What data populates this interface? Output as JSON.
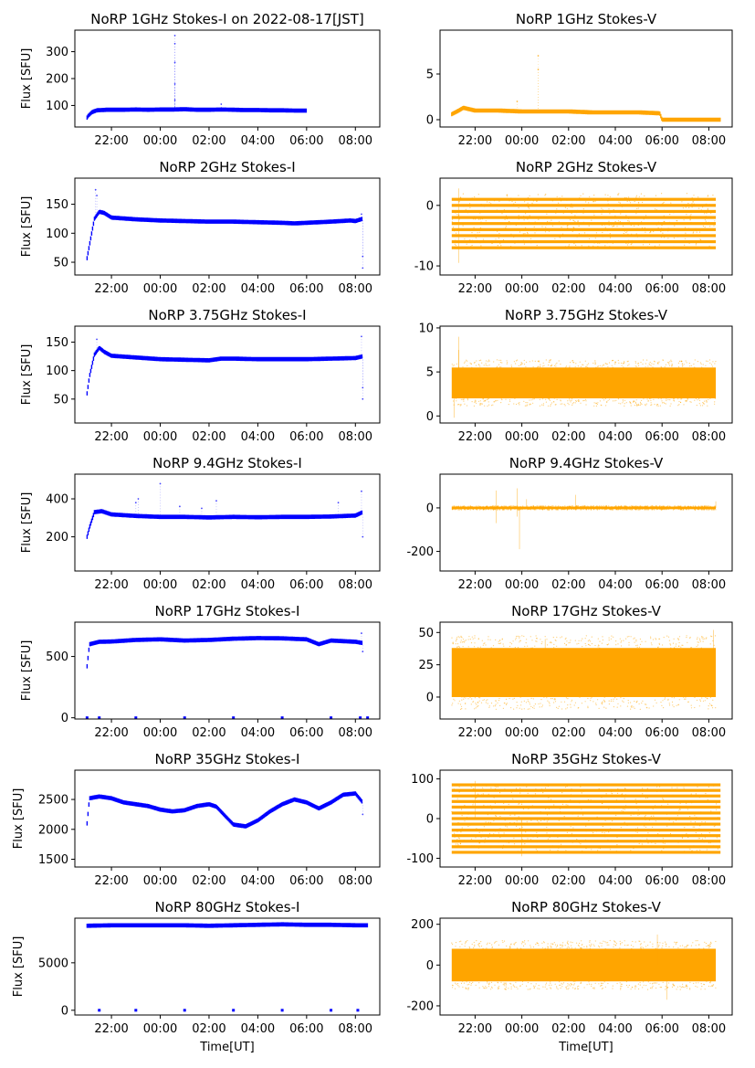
{
  "figure": {
    "xlabel": "Time[UT]",
    "colors": {
      "stokes_i": "#0000ff",
      "stokes_v": "#ffa500"
    }
  },
  "x_tick_labels": [
    "22:00",
    "00:00",
    "02:00",
    "04:00",
    "06:00",
    "08:00"
  ],
  "chart_data": [
    {
      "type": "scatter",
      "title": "NoRP 1GHz Stokes-I on 2022-08-17[JST]",
      "ylabel": "Flux [SFU]",
      "xlabel": "",
      "xlim": [
        20.5,
        33.0
      ],
      "ylim": [
        20,
        380
      ],
      "yticks": [
        100,
        200,
        300
      ],
      "data_range": [
        21.0,
        30.0
      ],
      "series": [
        {
          "name": "Stokes-I",
          "color": "#0000ff",
          "points": [
            [
              21.0,
              55
            ],
            [
              21.05,
              62
            ],
            [
              21.2,
              75
            ],
            [
              21.4,
              82
            ],
            [
              21.8,
              84
            ],
            [
              22.5,
              84
            ],
            [
              23.0,
              85
            ],
            [
              23.5,
              84
            ],
            [
              24.0,
              85
            ],
            [
              24.5,
              85
            ],
            [
              25.0,
              86
            ],
            [
              25.5,
              84
            ],
            [
              26.0,
              84
            ],
            [
              26.5,
              85
            ],
            [
              27.0,
              84
            ],
            [
              27.5,
              83
            ],
            [
              28.0,
              83
            ],
            [
              28.5,
              82
            ],
            [
              29.0,
              82
            ],
            [
              29.5,
              81
            ],
            [
              30.0,
              81
            ]
          ]
        }
      ],
      "spikes": [
        [
          24.6,
          360
        ],
        [
          24.6,
          330
        ],
        [
          24.6,
          260
        ],
        [
          24.6,
          180
        ],
        [
          24.6,
          120
        ],
        [
          26.5,
          105
        ]
      ]
    },
    {
      "type": "scatter",
      "title": "NoRP 1GHz Stokes-V",
      "ylabel": "",
      "xlabel": "",
      "xlim": [
        20.5,
        33.0
      ],
      "ylim": [
        -0.8,
        9.8
      ],
      "yticks": [
        0,
        5
      ],
      "data_range": [
        21.0,
        32.5
      ],
      "series": [
        {
          "name": "Stokes-V",
          "color": "#ffa500",
          "points": [
            [
              21.0,
              0.6
            ],
            [
              21.3,
              1.0
            ],
            [
              21.5,
              1.3
            ],
            [
              22.0,
              1.0
            ],
            [
              23.0,
              1.0
            ],
            [
              24.0,
              0.9
            ],
            [
              25.0,
              0.9
            ],
            [
              26.0,
              0.9
            ],
            [
              27.0,
              0.8
            ],
            [
              28.0,
              0.8
            ],
            [
              29.0,
              0.8
            ],
            [
              29.9,
              0.7
            ],
            [
              30.0,
              0.0
            ],
            [
              31.0,
              0.0
            ],
            [
              32.5,
              0.0
            ]
          ]
        }
      ],
      "spikes": [
        [
          24.7,
          7.0
        ],
        [
          24.7,
          5.5
        ],
        [
          23.8,
          2.0
        ]
      ]
    },
    {
      "type": "scatter",
      "title": "NoRP 2GHz Stokes-I",
      "ylabel": "Flux [SFU]",
      "xlabel": "",
      "xlim": [
        20.5,
        33.0
      ],
      "ylim": [
        28,
        195
      ],
      "yticks": [
        50,
        100,
        150
      ],
      "data_range": [
        21.0,
        32.3
      ],
      "series": [
        {
          "name": "Stokes-I",
          "color": "#0000ff",
          "points": [
            [
              21.0,
              57
            ],
            [
              21.1,
              80
            ],
            [
              21.3,
              125
            ],
            [
              21.5,
              137
            ],
            [
              21.7,
              135
            ],
            [
              22.0,
              127
            ],
            [
              23.0,
              124
            ],
            [
              24.0,
              122
            ],
            [
              25.0,
              121
            ],
            [
              26.0,
              120
            ],
            [
              27.0,
              120
            ],
            [
              28.0,
              119
            ],
            [
              29.0,
              118
            ],
            [
              29.5,
              117
            ],
            [
              30.0,
              118
            ],
            [
              31.0,
              120
            ],
            [
              31.8,
              122
            ],
            [
              32.0,
              121
            ],
            [
              32.3,
              125
            ]
          ]
        }
      ],
      "spikes": [
        [
          21.35,
          175
        ],
        [
          21.4,
          165
        ],
        [
          32.3,
          40
        ],
        [
          32.3,
          60
        ],
        [
          32.25,
          133
        ]
      ]
    },
    {
      "type": "band",
      "title": "NoRP 2GHz Stokes-V",
      "ylabel": "",
      "xlabel": "",
      "xlim": [
        20.5,
        33.0
      ],
      "ylim": [
        -11.5,
        4.5
      ],
      "yticks": [
        -10,
        0
      ],
      "data_range": [
        21.0,
        32.3
      ],
      "band": {
        "min": -7,
        "max": 2,
        "levels": [
          -7,
          -6,
          -5,
          -4,
          -3,
          -2,
          -1,
          0,
          1
        ]
      },
      "spikes": [
        [
          21.3,
          2.8
        ],
        [
          21.3,
          -9.5
        ]
      ]
    },
    {
      "type": "scatter",
      "title": "NoRP 3.75GHz Stokes-I",
      "ylabel": "Flux [SFU]",
      "xlabel": "",
      "xlim": [
        20.5,
        33.0
      ],
      "ylim": [
        8,
        178
      ],
      "yticks": [
        50,
        100,
        150
      ],
      "data_range": [
        21.0,
        32.3
      ],
      "series": [
        {
          "name": "Stokes-I",
          "color": "#0000ff",
          "points": [
            [
              21.0,
              60
            ],
            [
              21.1,
              90
            ],
            [
              21.3,
              128
            ],
            [
              21.5,
              140
            ],
            [
              21.7,
              133
            ],
            [
              22.0,
              126
            ],
            [
              23.0,
              123
            ],
            [
              24.0,
              120
            ],
            [
              25.0,
              119
            ],
            [
              26.0,
              118
            ],
            [
              26.5,
              121
            ],
            [
              27.0,
              121
            ],
            [
              28.0,
              120
            ],
            [
              29.0,
              120
            ],
            [
              30.0,
              120
            ],
            [
              31.0,
              121
            ],
            [
              32.0,
              122
            ],
            [
              32.3,
              125
            ]
          ]
        }
      ],
      "spikes": [
        [
          21.4,
          155
        ],
        [
          32.25,
          160
        ],
        [
          32.3,
          70
        ],
        [
          32.3,
          50
        ]
      ]
    },
    {
      "type": "band",
      "title": "NoRP 3.75GHz Stokes-V",
      "ylabel": "",
      "xlabel": "",
      "xlim": [
        20.5,
        33.0
      ],
      "ylim": [
        -0.8,
        10.2
      ],
      "yticks": [
        0,
        5,
        10
      ],
      "data_range": [
        21.0,
        32.3
      ],
      "band": {
        "min": 2.0,
        "max": 5.5,
        "levels": []
      },
      "spikes": [
        [
          21.3,
          9.0
        ],
        [
          21.3,
          7.5
        ],
        [
          21.1,
          -0.2
        ]
      ]
    },
    {
      "type": "scatter",
      "title": "NoRP 9.4GHz Stokes-I",
      "ylabel": "Flux [SFU]",
      "xlabel": "",
      "xlim": [
        20.5,
        33.0
      ],
      "ylim": [
        20,
        530
      ],
      "yticks": [
        200,
        400
      ],
      "data_range": [
        21.0,
        32.3
      ],
      "series": [
        {
          "name": "Stokes-I",
          "color": "#0000ff",
          "points": [
            [
              21.0,
              200
            ],
            [
              21.1,
              250
            ],
            [
              21.3,
              330
            ],
            [
              21.6,
              335
            ],
            [
              22.0,
              318
            ],
            [
              23.0,
              310
            ],
            [
              24.0,
              305
            ],
            [
              25.0,
              305
            ],
            [
              26.0,
              302
            ],
            [
              27.0,
              305
            ],
            [
              28.0,
              303
            ],
            [
              29.0,
              305
            ],
            [
              30.0,
              305
            ],
            [
              31.0,
              307
            ],
            [
              32.0,
              312
            ],
            [
              32.3,
              330
            ]
          ]
        }
      ],
      "spikes": [
        [
          23.0,
          380
        ],
        [
          23.1,
          400
        ],
        [
          24.0,
          480
        ],
        [
          32.25,
          440
        ],
        [
          32.3,
          200
        ],
        [
          26.3,
          390
        ],
        [
          24.8,
          360
        ],
        [
          25.7,
          350
        ],
        [
          31.3,
          380
        ]
      ]
    },
    {
      "type": "band",
      "title": "NoRP 9.4GHz Stokes-V",
      "ylabel": "",
      "xlabel": "",
      "xlim": [
        20.5,
        33.0
      ],
      "ylim": [
        -290,
        155
      ],
      "yticks": [
        -200,
        0
      ],
      "data_range": [
        21.0,
        32.3
      ],
      "band": {
        "min": -6,
        "max": 6,
        "levels": []
      },
      "spikes": [
        [
          22.9,
          80
        ],
        [
          22.9,
          -70
        ],
        [
          23.8,
          90
        ],
        [
          23.8,
          -40
        ],
        [
          23.9,
          -190
        ],
        [
          24.2,
          40
        ],
        [
          26.3,
          60
        ],
        [
          32.3,
          30
        ]
      ]
    },
    {
      "type": "scatter",
      "title": "NoRP 17GHz Stokes-I",
      "ylabel": "Flux [SFU]",
      "xlabel": "",
      "xlim": [
        20.5,
        33.0
      ],
      "ylim": [
        -10,
        780
      ],
      "yticks": [
        0,
        500
      ],
      "data_range": [
        21.0,
        32.3
      ],
      "series": [
        {
          "name": "Stokes-I",
          "color": "#0000ff",
          "points": [
            [
              21.0,
              420
            ],
            [
              21.1,
              600
            ],
            [
              21.5,
              620
            ],
            [
              22.0,
              622
            ],
            [
              23.0,
              635
            ],
            [
              24.0,
              640
            ],
            [
              25.0,
              630
            ],
            [
              26.0,
              635
            ],
            [
              27.0,
              645
            ],
            [
              28.0,
              650
            ],
            [
              29.0,
              648
            ],
            [
              30.0,
              640
            ],
            [
              30.5,
              600
            ],
            [
              31.0,
              630
            ],
            [
              32.0,
              620
            ],
            [
              32.3,
              610
            ]
          ]
        }
      ],
      "spikes": [
        [
          32.25,
          690
        ],
        [
          32.3,
          540
        ]
      ],
      "zeros": [
        21.0,
        21.5,
        23.0,
        25.0,
        27.0,
        29.0,
        31.0,
        32.2,
        32.5
      ]
    },
    {
      "type": "band",
      "title": "NoRP 17GHz Stokes-V",
      "ylabel": "",
      "xlabel": "",
      "xlim": [
        20.5,
        33.0
      ],
      "ylim": [
        -17,
        58
      ],
      "yticks": [
        0,
        25,
        50
      ],
      "data_range": [
        21.0,
        32.3
      ],
      "band": {
        "min": 0,
        "max": 38,
        "levels": []
      },
      "spikes": [
        [
          32.2,
          52
        ],
        [
          25.0,
          45
        ]
      ]
    },
    {
      "type": "scatter",
      "title": "NoRP 35GHz Stokes-I",
      "ylabel": "Flux [SFU]",
      "xlabel": "",
      "xlim": [
        20.5,
        33.0
      ],
      "ylim": [
        1370,
        2990
      ],
      "yticks": [
        1500,
        2000,
        2500
      ],
      "data_range": [
        21.0,
        32.3
      ],
      "series": [
        {
          "name": "Stokes-I",
          "color": "#0000ff",
          "points": [
            [
              21.0,
              2100
            ],
            [
              21.1,
              2520
            ],
            [
              21.5,
              2550
            ],
            [
              22.0,
              2520
            ],
            [
              22.5,
              2450
            ],
            [
              23.0,
              2420
            ],
            [
              23.5,
              2390
            ],
            [
              24.0,
              2330
            ],
            [
              24.5,
              2300
            ],
            [
              25.0,
              2320
            ],
            [
              25.5,
              2390
            ],
            [
              26.0,
              2420
            ],
            [
              26.3,
              2380
            ],
            [
              26.6,
              2250
            ],
            [
              27.0,
              2080
            ],
            [
              27.5,
              2050
            ],
            [
              28.0,
              2150
            ],
            [
              28.5,
              2300
            ],
            [
              29.0,
              2420
            ],
            [
              29.5,
              2500
            ],
            [
              30.0,
              2450
            ],
            [
              30.5,
              2350
            ],
            [
              31.0,
              2450
            ],
            [
              31.5,
              2580
            ],
            [
              32.0,
              2600
            ],
            [
              32.3,
              2450
            ]
          ]
        }
      ],
      "spikes": [
        [
          32.3,
          2250
        ]
      ]
    },
    {
      "type": "band",
      "title": "NoRP 35GHz Stokes-V",
      "ylabel": "",
      "xlabel": "",
      "xlim": [
        20.5,
        33.0
      ],
      "ylim": [
        -122,
        122
      ],
      "yticks": [
        -100,
        0,
        100
      ],
      "data_range": [
        21.0,
        32.5
      ],
      "band": {
        "min": -85,
        "max": 85,
        "levels": [
          -85,
          -71,
          -57,
          -43,
          -29,
          -14,
          0,
          14,
          29,
          43,
          57,
          71,
          85
        ]
      },
      "spikes": [
        [
          22.0,
          95
        ],
        [
          24.0,
          -95
        ]
      ]
    },
    {
      "type": "scatter",
      "title": "NoRP 80GHz Stokes-I",
      "ylabel": "Flux [SFU]",
      "xlabel": "Time[UT]",
      "xlim": [
        20.5,
        33.0
      ],
      "ylim": [
        -500,
        9700
      ],
      "yticks": [
        0,
        5000
      ],
      "data_range": [
        21.0,
        32.5
      ],
      "series": [
        {
          "name": "Stokes-I",
          "color": "#0000ff",
          "points": [
            [
              21.0,
              8900
            ],
            [
              22.0,
              8950
            ],
            [
              23.0,
              8950
            ],
            [
              24.0,
              8950
            ],
            [
              25.0,
              8950
            ],
            [
              26.0,
              8900
            ],
            [
              27.0,
              8950
            ],
            [
              28.0,
              9000
            ],
            [
              29.0,
              9050
            ],
            [
              30.0,
              9000
            ],
            [
              31.0,
              9000
            ],
            [
              32.0,
              8950
            ],
            [
              32.5,
              8950
            ]
          ]
        }
      ],
      "zeros": [
        21.5,
        23.0,
        25.0,
        27.0,
        29.0,
        31.0,
        32.1
      ]
    },
    {
      "type": "band",
      "title": "NoRP 80GHz Stokes-V",
      "ylabel": "",
      "xlabel": "Time[UT]",
      "xlim": [
        20.5,
        33.0
      ],
      "ylim": [
        -245,
        230
      ],
      "yticks": [
        -200,
        0,
        200
      ],
      "data_range": [
        21.0,
        32.3
      ],
      "band": {
        "min": -80,
        "max": 80,
        "levels": []
      },
      "spikes": [
        [
          29.8,
          150
        ],
        [
          30.2,
          -170
        ]
      ]
    }
  ]
}
